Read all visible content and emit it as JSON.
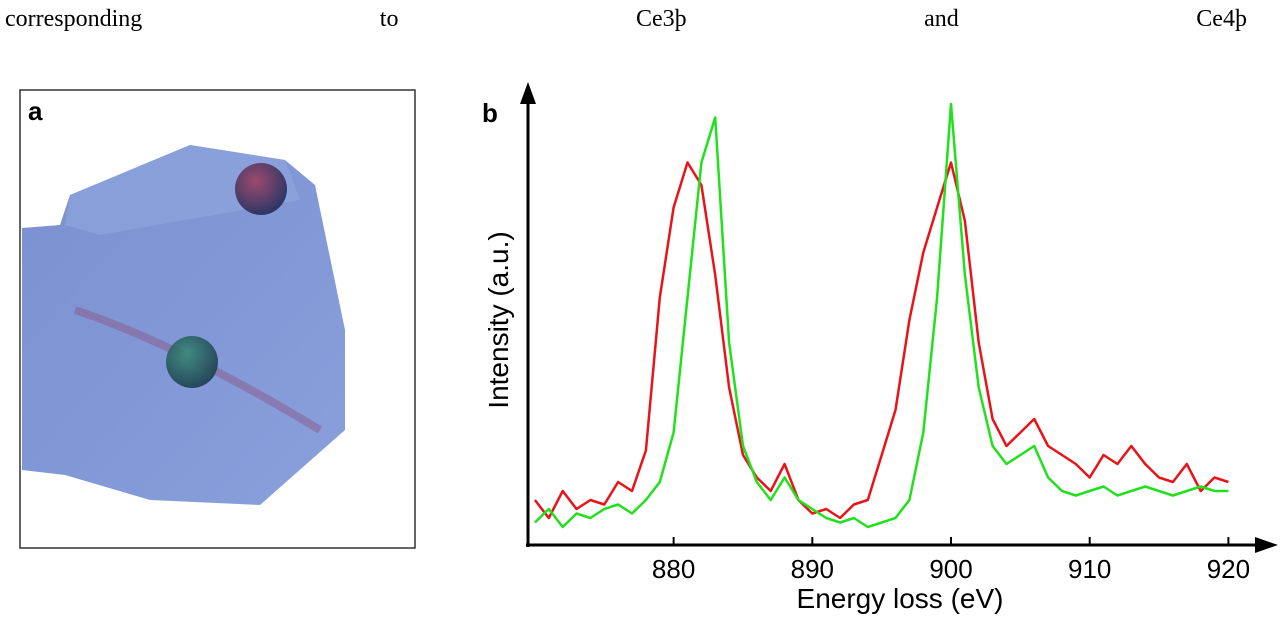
{
  "header": {
    "words": [
      "corresponding",
      "to",
      "Ce3þ",
      "and",
      "Ce4þ"
    ]
  },
  "panel_a": {
    "label": "a"
  },
  "chart_data": {
    "type": "line",
    "panel_label": "b",
    "x_label": "Energy loss (eV)",
    "y_label": "Intensity (a.u.)",
    "x": [
      870,
      871,
      872,
      873,
      874,
      875,
      876,
      877,
      878,
      879,
      880,
      881,
      882,
      883,
      884,
      885,
      886,
      887,
      888,
      889,
      890,
      891,
      892,
      893,
      894,
      895,
      896,
      897,
      898,
      899,
      900,
      901,
      902,
      903,
      904,
      905,
      906,
      907,
      908,
      909,
      910,
      911,
      912,
      913,
      914,
      915,
      916,
      917,
      918,
      919,
      920
    ],
    "series": [
      {
        "name": "Ce3+",
        "color": "#e8141a",
        "values": [
          10,
          6,
          12,
          8,
          10,
          9,
          14,
          12,
          21,
          55,
          75,
          85,
          80,
          60,
          35,
          20,
          15,
          12,
          18,
          10,
          7,
          8,
          6,
          9,
          10,
          20,
          30,
          50,
          65,
          75,
          85,
          72,
          45,
          28,
          22,
          25,
          28,
          22,
          20,
          18,
          15,
          20,
          18,
          22,
          18,
          15,
          14,
          18,
          12,
          15,
          14
        ]
      },
      {
        "name": "Ce4+",
        "color": "#22e01e",
        "values": [
          5,
          8,
          4,
          7,
          6,
          8,
          9,
          7,
          10,
          14,
          25,
          55,
          85,
          95,
          45,
          22,
          14,
          10,
          15,
          10,
          8,
          6,
          5,
          6,
          4,
          5,
          6,
          10,
          25,
          55,
          98,
          60,
          35,
          22,
          18,
          20,
          22,
          15,
          12,
          11,
          12,
          13,
          11,
          12,
          13,
          12,
          11,
          12,
          13,
          12,
          12
        ]
      }
    ],
    "xlim": [
      869.5,
      923
    ],
    "ylim": [
      0,
      100
    ],
    "xticks": [
      880,
      890,
      900,
      910,
      920
    ]
  }
}
